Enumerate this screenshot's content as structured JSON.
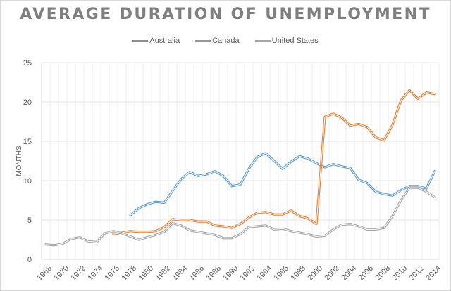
{
  "chart_data": {
    "type": "line",
    "title": "AVERAGE DURATION OF UNEMPLOYMENT",
    "xlabel": "",
    "ylabel": "MONTHS",
    "ylim": [
      0,
      25
    ],
    "yticks": [
      0,
      5,
      10,
      15,
      20,
      25
    ],
    "grid": true,
    "legend": "top",
    "x": [
      1968,
      1969,
      1970,
      1971,
      1972,
      1973,
      1974,
      1975,
      1976,
      1977,
      1978,
      1979,
      1980,
      1981,
      1982,
      1983,
      1984,
      1985,
      1986,
      1987,
      1988,
      1989,
      1990,
      1991,
      1992,
      1993,
      1994,
      1995,
      1996,
      1997,
      1998,
      1999,
      2000,
      2001,
      2002,
      2003,
      2004,
      2005,
      2006,
      2007,
      2008,
      2009,
      2010,
      2011,
      2012,
      2013,
      2014
    ],
    "xtick_labels": [
      "1968",
      "1970",
      "1972",
      "1974",
      "1976",
      "1978",
      "1980",
      "1982",
      "1984",
      "1986",
      "1988",
      "1990",
      "1992",
      "1994",
      "1996",
      "1998",
      "2000",
      "2002",
      "2004",
      "2006",
      "2008",
      "2010",
      "2012",
      "2014"
    ],
    "series": [
      {
        "name": "Australia",
        "color": "#5b9bd5",
        "values": [
          null,
          null,
          null,
          null,
          null,
          null,
          null,
          null,
          null,
          null,
          5.6,
          6.5,
          7.0,
          7.3,
          7.2,
          8.7,
          10.2,
          11.1,
          10.6,
          10.8,
          11.2,
          10.6,
          9.3,
          9.5,
          11.5,
          13.0,
          13.5,
          12.5,
          11.5,
          12.4,
          13.1,
          12.8,
          12.2,
          11.7,
          12.1,
          11.8,
          11.6,
          10.1,
          9.7,
          8.6,
          8.3,
          8.1,
          8.8,
          9.3,
          9.3,
          9.0,
          11.2
        ]
      },
      {
        "name": "Canada",
        "color": "#ed7d31",
        "values": [
          null,
          null,
          null,
          null,
          null,
          null,
          null,
          null,
          3.2,
          3.4,
          3.6,
          3.5,
          3.5,
          3.6,
          4.1,
          5.1,
          5.0,
          5.0,
          4.8,
          4.8,
          4.3,
          4.2,
          4.0,
          4.5,
          5.3,
          5.9,
          6.0,
          5.7,
          5.7,
          6.2,
          5.5,
          5.2,
          4.5,
          18.1,
          18.5,
          18.0,
          17.0,
          17.2,
          16.8,
          15.5,
          15.1,
          17.1,
          20.2,
          21.5,
          20.4,
          21.2,
          21.0
        ]
      },
      {
        "name": "United States",
        "color": "#a5a5a5",
        "values": [
          1.9,
          1.8,
          2.0,
          2.6,
          2.8,
          2.3,
          2.2,
          3.3,
          3.6,
          3.3,
          2.9,
          2.5,
          2.8,
          3.1,
          3.5,
          4.6,
          4.3,
          3.7,
          3.5,
          3.3,
          3.1,
          2.7,
          2.7,
          3.2,
          4.1,
          4.2,
          4.3,
          3.8,
          3.9,
          3.6,
          3.4,
          3.2,
          2.9,
          3.0,
          3.8,
          4.4,
          4.5,
          4.2,
          3.8,
          3.8,
          4.0,
          5.5,
          7.5,
          9.1,
          9.1,
          8.6,
          7.9
        ]
      }
    ]
  }
}
